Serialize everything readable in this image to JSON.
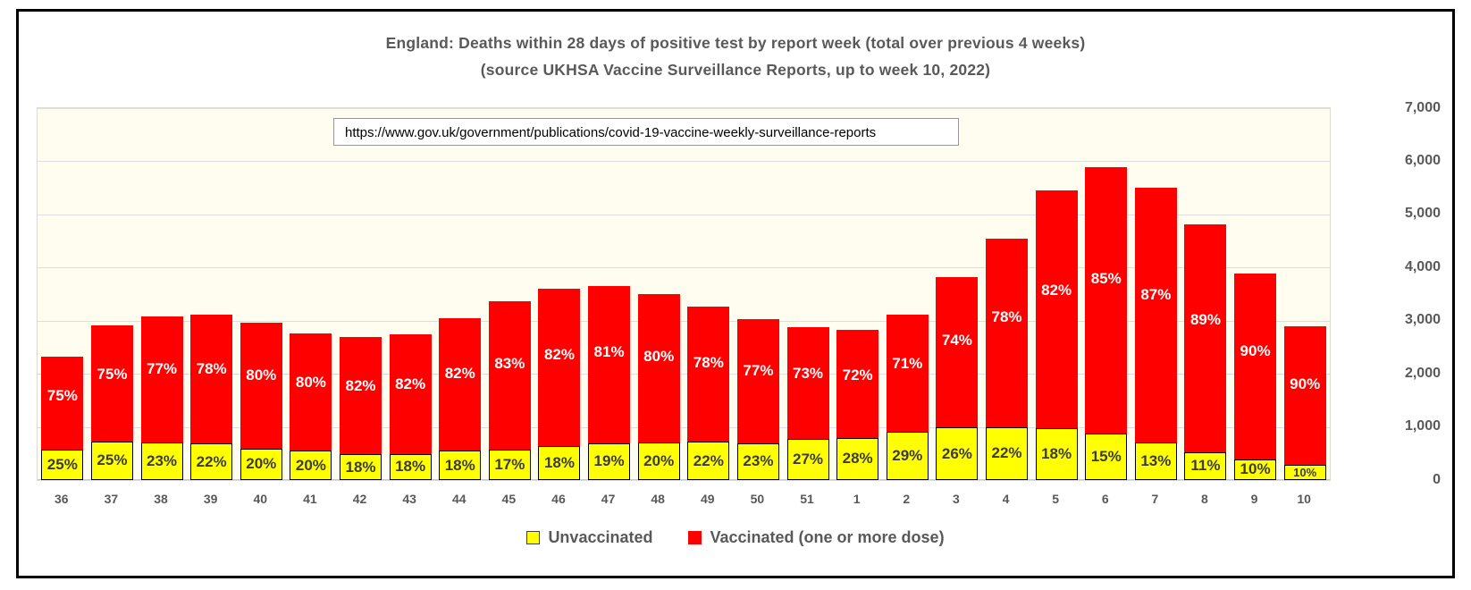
{
  "chart_data": {
    "type": "bar",
    "stacked": true,
    "title": "England: Deaths within 28 days of positive test by report week (total over previous 4 weeks)",
    "subtitle": "(source UKHSA Vaccine Surveillance Reports, up to week 10, 2022)",
    "annotation": "https://www.gov.uk/government/publications/covid-19-vaccine-weekly-surveillance-reports",
    "categories": [
      "36",
      "37",
      "38",
      "39",
      "40",
      "41",
      "42",
      "43",
      "44",
      "45",
      "46",
      "47",
      "48",
      "49",
      "50",
      "51",
      "1",
      "2",
      "3",
      "4",
      "5",
      "6",
      "7",
      "8",
      "9",
      "10"
    ],
    "totals": [
      2320,
      2910,
      3080,
      3110,
      2960,
      2760,
      2690,
      2740,
      3050,
      3370,
      3600,
      3650,
      3500,
      3270,
      3030,
      2880,
      2830,
      3110,
      3820,
      4550,
      5450,
      5890,
      5500,
      4820,
      3890,
      2890
    ],
    "series": [
      {
        "name": "Unvaccinated",
        "color": "#FFFF00",
        "share_pct": [
          25,
          25,
          23,
          22,
          20,
          20,
          18,
          18,
          18,
          17,
          18,
          19,
          20,
          22,
          23,
          27,
          28,
          29,
          26,
          22,
          18,
          15,
          13,
          11,
          10,
          10
        ],
        "labels": [
          "25%",
          "25%",
          "23%",
          "22%",
          "20%",
          "20%",
          "18%",
          "18%",
          "18%",
          "17%",
          "18%",
          "19%",
          "20%",
          "22%",
          "23%",
          "27%",
          "28%",
          "29%",
          "26%",
          "22%",
          "18%",
          "15%",
          "13%",
          "11%",
          "10%",
          "10%"
        ]
      },
      {
        "name": "Vaccinated (one or more dose)",
        "color": "#FF0000",
        "share_pct": [
          75,
          75,
          77,
          78,
          80,
          80,
          82,
          82,
          82,
          83,
          82,
          81,
          80,
          78,
          77,
          73,
          72,
          71,
          74,
          78,
          82,
          85,
          87,
          89,
          90,
          90
        ],
        "labels": [
          "75%",
          "75%",
          "77%",
          "78%",
          "80%",
          "80%",
          "82%",
          "82%",
          "82%",
          "83%",
          "82%",
          "81%",
          "80%",
          "78%",
          "77%",
          "73%",
          "72%",
          "71%",
          "74%",
          "78%",
          "82%",
          "85%",
          "87%",
          "89%",
          "90%",
          "90%"
        ]
      }
    ],
    "ylim": [
      0,
      7000
    ],
    "ytick_labels": [
      "7,000",
      "6,000",
      "5,000",
      "4,000",
      "3,000",
      "2,000",
      "1,000",
      "0"
    ],
    "ytick_values": [
      7000,
      6000,
      5000,
      4000,
      3000,
      2000,
      1000,
      0
    ],
    "grid": "horizontal",
    "legend_position": "bottom",
    "axis_side": "right"
  }
}
